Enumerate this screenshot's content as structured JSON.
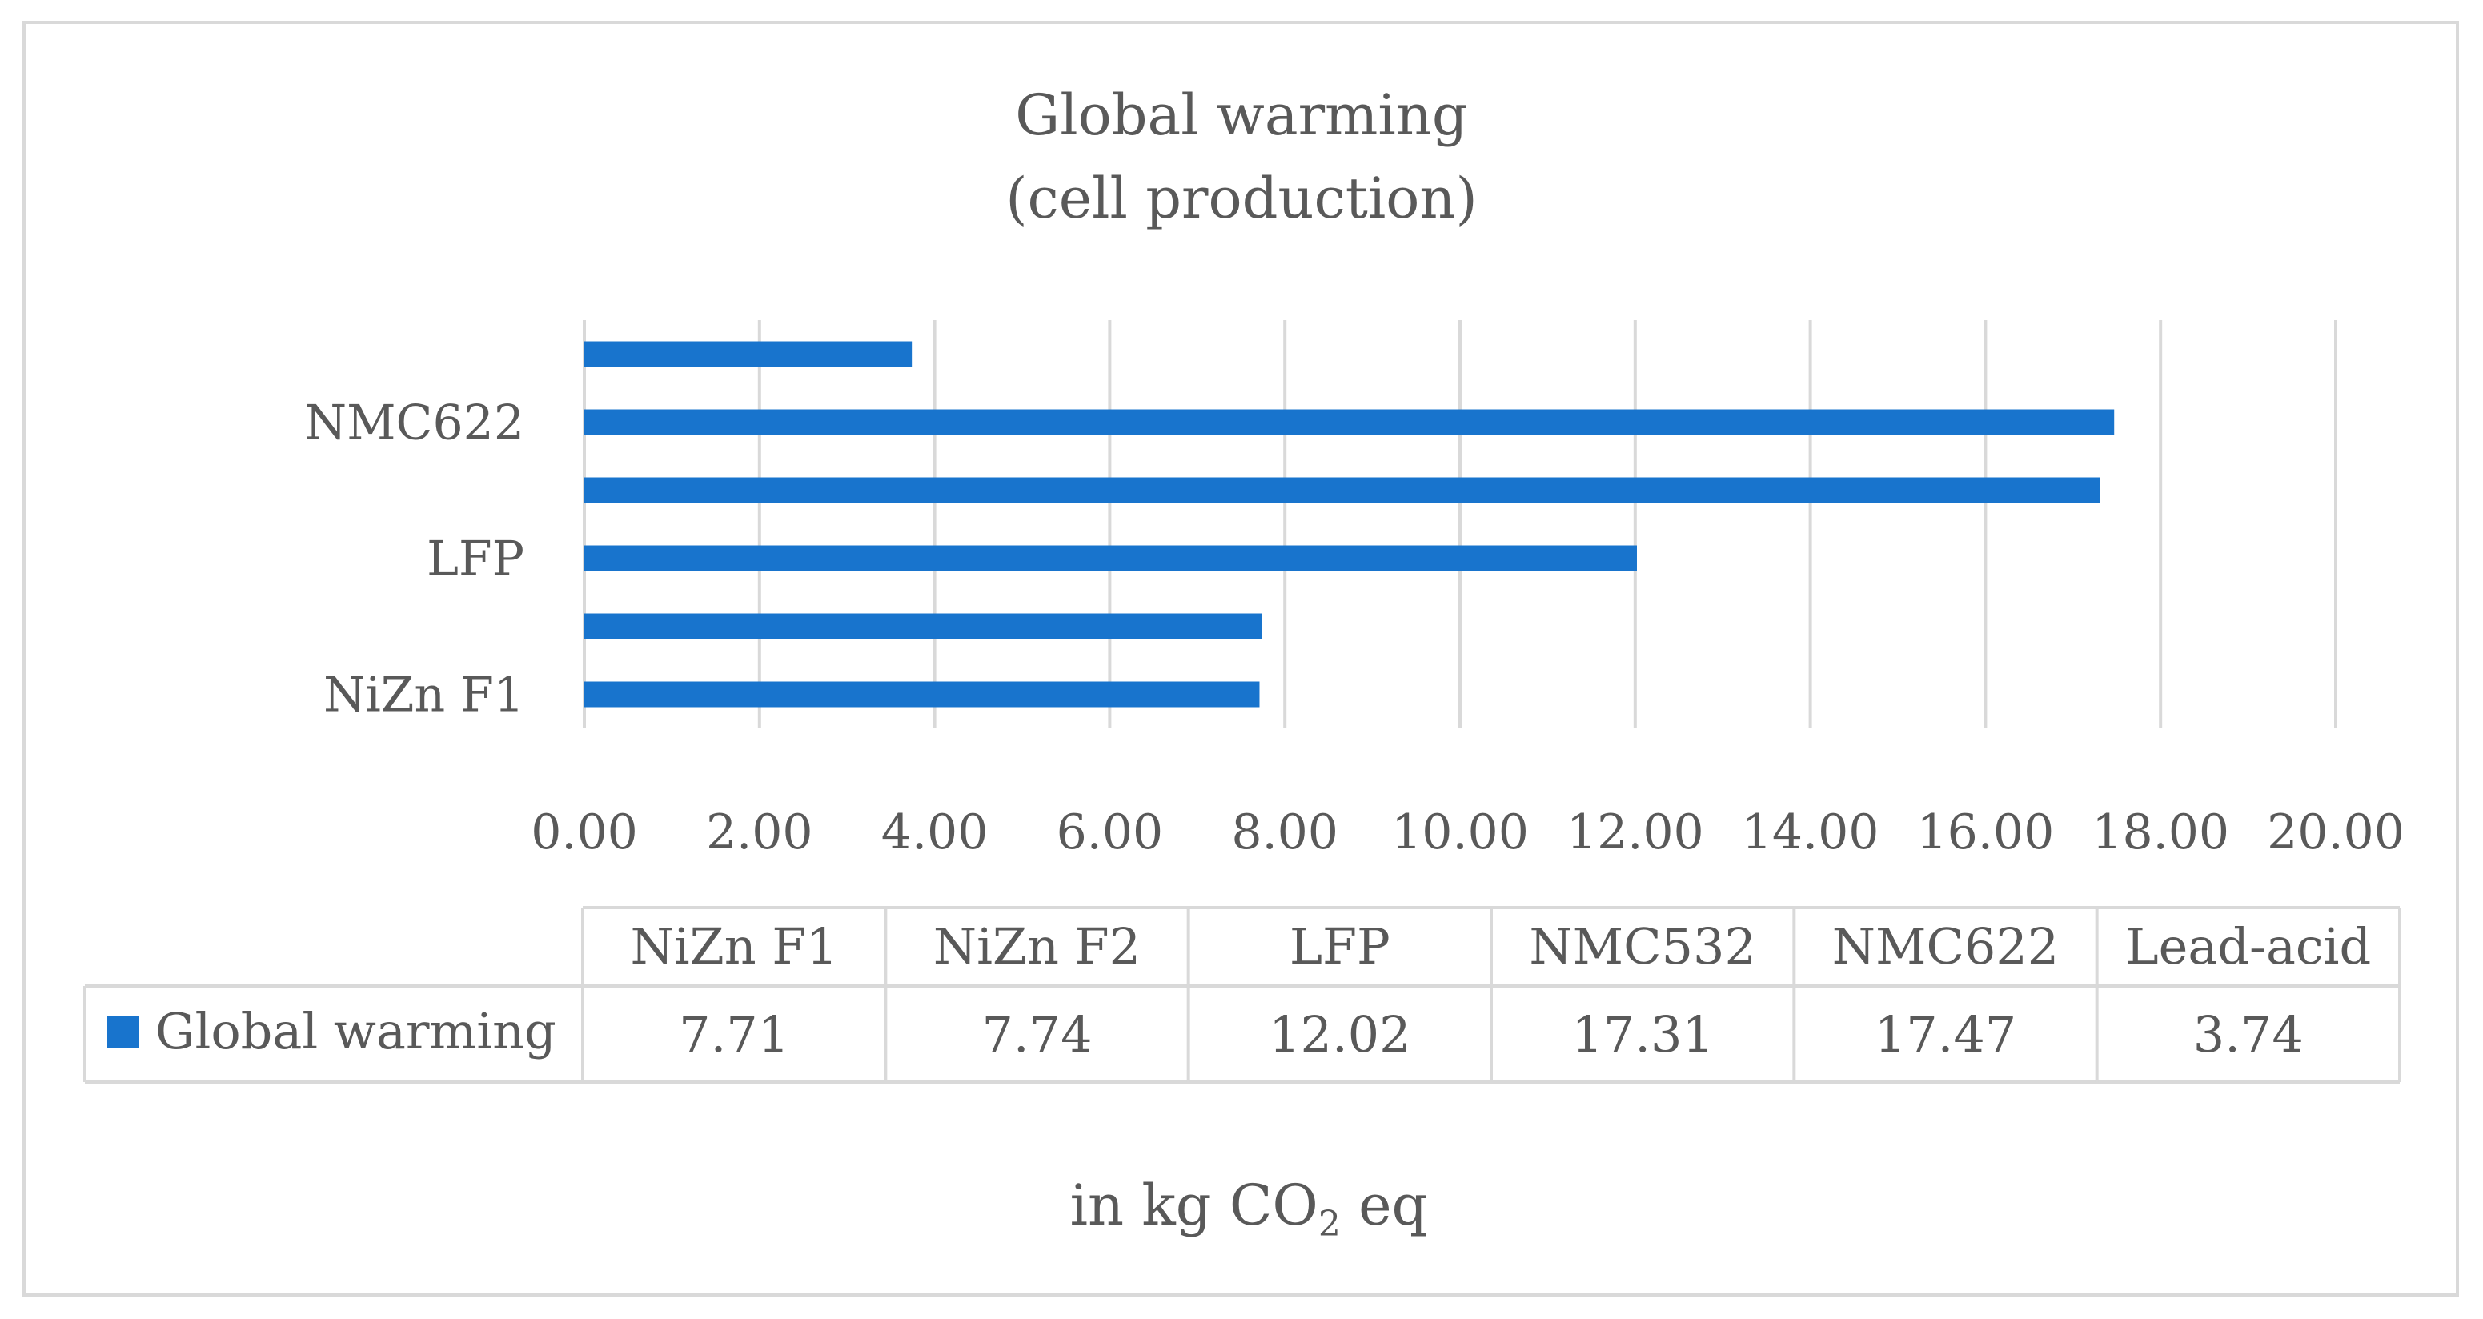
{
  "chart_data": {
    "type": "bar",
    "orientation": "horizontal",
    "title_lines": [
      "Global warming",
      "(cell production)"
    ],
    "categories": [
      "NiZn F1",
      "NiZn F2",
      "LFP",
      "NMC532",
      "NMC622",
      "Lead-acid"
    ],
    "series": [
      {
        "name": "Global warming",
        "color": "#1874cd",
        "values": [
          7.71,
          7.74,
          12.02,
          17.31,
          17.47,
          3.74
        ]
      }
    ],
    "value_labels": [
      "7.71",
      "7.74",
      "12.02",
      "17.31",
      "17.47",
      "3.74"
    ],
    "visible_category_labels": [
      "NiZn F1",
      "LFP",
      "NMC622"
    ],
    "x_ticks": [
      "0.00",
      "2.00",
      "4.00",
      "6.00",
      "8.00",
      "10.00",
      "12.00",
      "14.00",
      "16.00",
      "18.00",
      "20.00"
    ],
    "xlim": [
      0,
      20
    ],
    "grid": true,
    "legend": "data-table",
    "unit_label": {
      "prefix": "in kg CO",
      "subscript": "2",
      "suffix": " eq"
    }
  }
}
